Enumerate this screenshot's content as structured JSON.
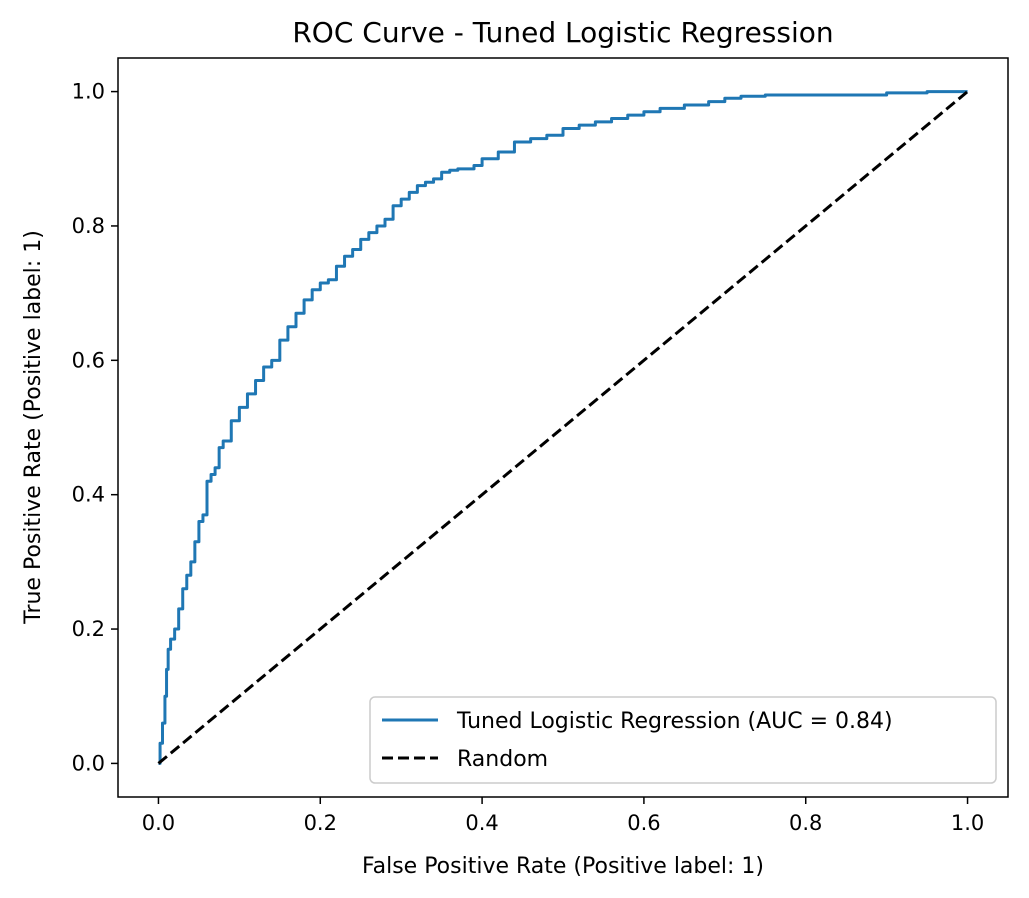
{
  "chart_data": {
    "type": "line",
    "title": "ROC Curve - Tuned Logistic Regression",
    "xlabel": "False Positive Rate (Positive label: 1)",
    "ylabel": "True Positive Rate (Positive label: 1)",
    "xlim": [
      -0.05,
      1.05
    ],
    "ylim": [
      -0.05,
      1.05
    ],
    "xticks": [
      0.0,
      0.2,
      0.4,
      0.6,
      0.8,
      1.0
    ],
    "xtick_labels": [
      "0.0",
      "0.2",
      "0.4",
      "0.6",
      "0.8",
      "1.0"
    ],
    "yticks": [
      0.0,
      0.2,
      0.4,
      0.6,
      0.8,
      1.0
    ],
    "ytick_labels": [
      "0.0",
      "0.2",
      "0.4",
      "0.6",
      "0.8",
      "1.0"
    ],
    "grid": false,
    "legend_position": "lower-right",
    "series": [
      {
        "name": "Tuned Logistic Regression (AUC = 0.84)",
        "color": "#1f77b4",
        "style": "solid",
        "x": [
          0.0,
          0.002,
          0.005,
          0.008,
          0.01,
          0.012,
          0.015,
          0.02,
          0.025,
          0.03,
          0.035,
          0.04,
          0.045,
          0.05,
          0.055,
          0.06,
          0.065,
          0.07,
          0.075,
          0.08,
          0.09,
          0.1,
          0.11,
          0.12,
          0.13,
          0.14,
          0.15,
          0.16,
          0.17,
          0.18,
          0.19,
          0.2,
          0.21,
          0.22,
          0.23,
          0.24,
          0.25,
          0.26,
          0.27,
          0.28,
          0.29,
          0.3,
          0.31,
          0.32,
          0.33,
          0.34,
          0.35,
          0.36,
          0.37,
          0.38,
          0.39,
          0.4,
          0.42,
          0.44,
          0.46,
          0.48,
          0.5,
          0.52,
          0.54,
          0.56,
          0.58,
          0.6,
          0.62,
          0.65,
          0.68,
          0.7,
          0.72,
          0.75,
          0.8,
          0.85,
          0.9,
          0.95,
          1.0
        ],
        "y": [
          0.0,
          0.03,
          0.06,
          0.1,
          0.14,
          0.17,
          0.185,
          0.2,
          0.23,
          0.26,
          0.28,
          0.3,
          0.33,
          0.36,
          0.37,
          0.42,
          0.43,
          0.44,
          0.47,
          0.48,
          0.51,
          0.53,
          0.55,
          0.57,
          0.59,
          0.6,
          0.63,
          0.65,
          0.67,
          0.69,
          0.705,
          0.715,
          0.72,
          0.74,
          0.755,
          0.765,
          0.78,
          0.79,
          0.8,
          0.81,
          0.83,
          0.84,
          0.85,
          0.86,
          0.865,
          0.87,
          0.88,
          0.883,
          0.885,
          0.885,
          0.89,
          0.9,
          0.91,
          0.925,
          0.93,
          0.935,
          0.945,
          0.95,
          0.955,
          0.96,
          0.965,
          0.97,
          0.975,
          0.98,
          0.985,
          0.99,
          0.993,
          0.995,
          0.995,
          0.995,
          0.998,
          1.0,
          1.0
        ]
      },
      {
        "name": "Random",
        "color": "#000000",
        "style": "dashed",
        "x": [
          0.0,
          1.0
        ],
        "y": [
          0.0,
          1.0
        ]
      }
    ]
  }
}
